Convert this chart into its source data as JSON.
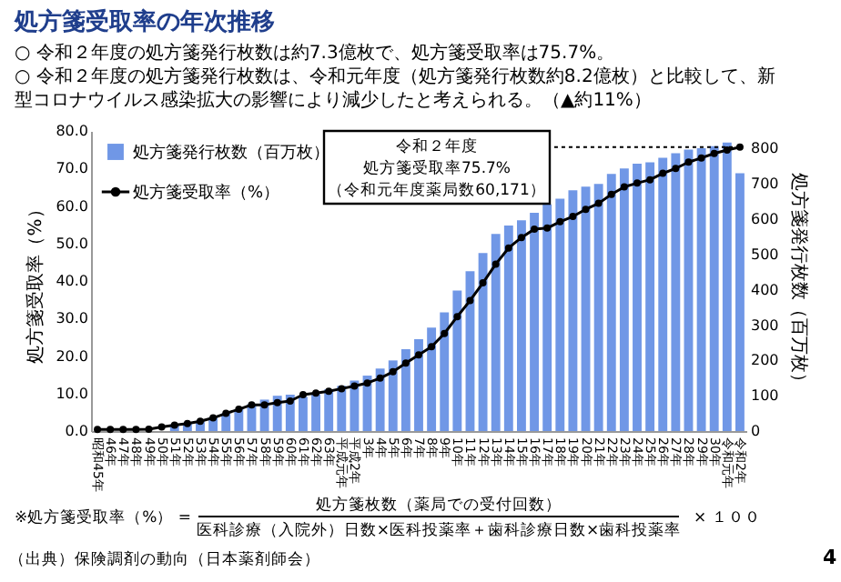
{
  "chart_data": {
    "type": "bar",
    "title": "処方箋受取率の年次推移",
    "subtitle": [
      "○ 令和２年度の処方箋発行枚数は約7.3億枚で、処方箋受取率は75.7%。",
      "○ 令和２年度の処方箋発行枚数は、令和元年度（処方箋発行枚数約8.2億枚）と比較して、新型コロナウイルス感染拡大の影響により減少したと考えられる。（▲約11%）"
    ],
    "ylabel": "処方箋受取率（%）",
    "y2label": "処方箋発行枚数（百万枚）",
    "categories": [
      "昭和45年",
      "46年",
      "47年",
      "48年",
      "49年",
      "50年",
      "51年",
      "52年",
      "53年",
      "54年",
      "55年",
      "56年",
      "57年",
      "58年",
      "59年",
      "60年",
      "61年",
      "62年",
      "63年",
      "平成元年",
      "平成2年",
      "3年",
      "4年",
      "5年",
      "6年",
      "7年",
      "8年",
      "9年",
      "10年",
      "11年",
      "12年",
      "13年",
      "14年",
      "15年",
      "16年",
      "17年",
      "18年",
      "19年",
      "20年",
      "21年",
      "22年",
      "23年",
      "24年",
      "25年",
      "26年",
      "27年",
      "28年",
      "29年",
      "30年",
      "令和元年",
      "令和2年"
    ],
    "series": [
      {
        "name": "処方箋発行枚数（百万枚）",
        "axis": "y2",
        "color": "#7097e6",
        "values": [
          null,
          null,
          null,
          null,
          null,
          null,
          19,
          21,
          29,
          39,
          50,
          62,
          76,
          89,
          100,
          103,
          97,
          104,
          118,
          128,
          143,
          157,
          177,
          200,
          232,
          260,
          293,
          336,
          398,
          453,
          504,
          558,
          582,
          597,
          618,
          642,
          658,
          682,
          692,
          700,
          728,
          744,
          757,
          761,
          774,
          787,
          797,
          801,
          807,
          817,
          730
        ]
      },
      {
        "name": "処方箋受取率（%）",
        "type": "line",
        "color": "#000000",
        "marker": "circle",
        "values": [
          0.4,
          0.4,
          0.4,
          0.4,
          0.5,
          1.1,
          1.6,
          2.0,
          2.6,
          3.5,
          4.7,
          5.8,
          7.0,
          7.0,
          7.6,
          8.0,
          9.7,
          10.1,
          10.6,
          11.3,
          12.0,
          12.8,
          14.1,
          15.8,
          18.1,
          20.3,
          22.5,
          26.0,
          30.5,
          34.8,
          39.5,
          44.5,
          48.8,
          51.6,
          53.8,
          54.1,
          55.8,
          57.2,
          59.1,
          60.7,
          63.1,
          65.1,
          66.1,
          67.0,
          68.7,
          70.0,
          71.7,
          72.8,
          74.0,
          74.9,
          75.7
        ]
      }
    ],
    "ylim": [
      0,
      80
    ],
    "yticks": [
      {
        "value": 0,
        "label": "0.0"
      },
      {
        "value": 10,
        "label": "10.0"
      },
      {
        "value": 20,
        "label": "20.0"
      },
      {
        "value": 30,
        "label": "30.0"
      },
      {
        "value": 40,
        "label": "40.0"
      },
      {
        "value": 50,
        "label": "50.0"
      },
      {
        "value": 60,
        "label": "60.0"
      },
      {
        "value": 70,
        "label": "70.0"
      },
      {
        "value": 80,
        "label": "80.0"
      }
    ],
    "y2lim": [
      0,
      850
    ],
    "y2ticks": [
      0,
      100,
      200,
      300,
      400,
      500,
      600,
      700,
      800
    ],
    "grid": false,
    "legend": "top left",
    "ref_lines": [
      {
        "axis": "y",
        "value": 75.7,
        "color": "#000000",
        "line_style": "dotted"
      }
    ],
    "annotations": [
      "令和２年度",
      "処方箋受取率75.7%",
      "（令和元年度薬局数60,171）",
      "※処方箋受取率（%） =",
      "処方箋枚数（薬局での受付回数）",
      "医科診療（入院外）日数×医科投薬率＋歯科診療日数×歯科投薬率",
      "× １００",
      "（出典）保険調剤の動向（日本薬剤師会）",
      "4"
    ]
  }
}
